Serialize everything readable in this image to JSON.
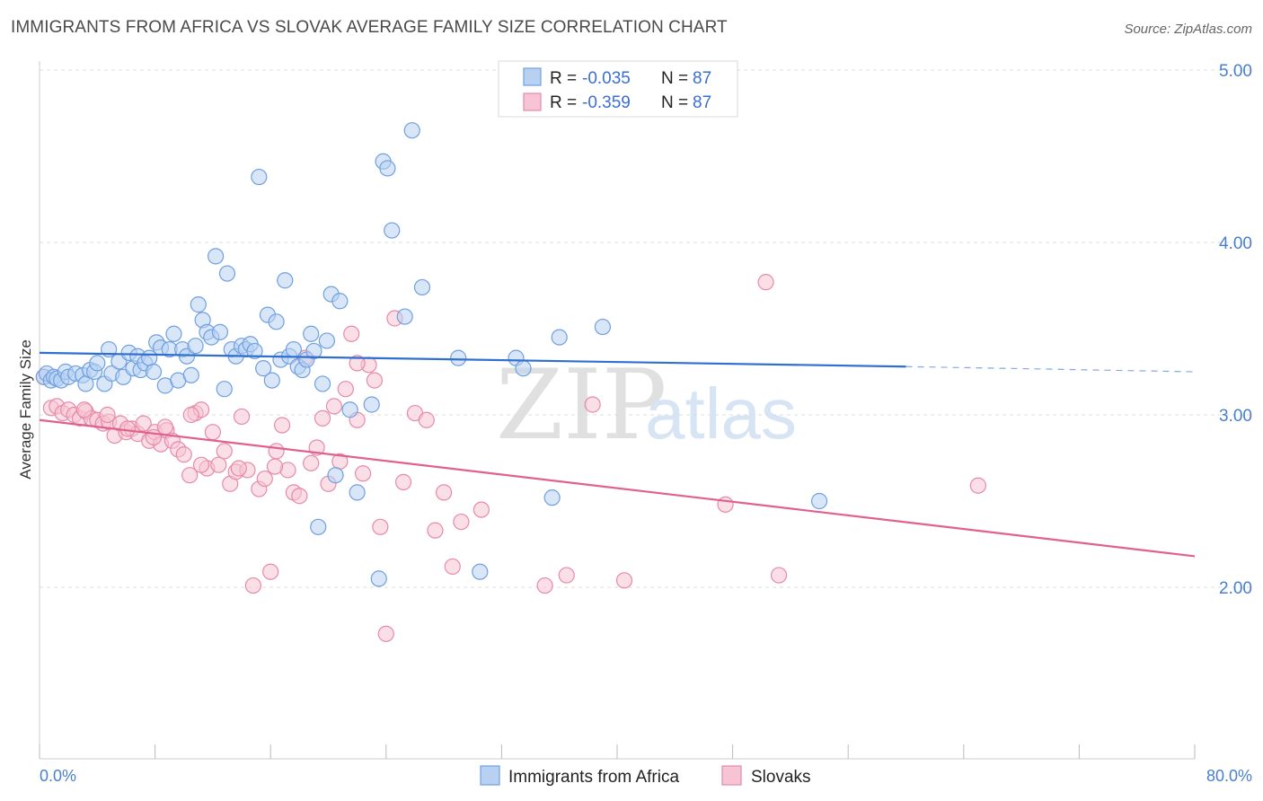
{
  "title": "IMMIGRANTS FROM AFRICA VS SLOVAK AVERAGE FAMILY SIZE CORRELATION CHART",
  "source": "Source: ZipAtlas.com",
  "watermark": {
    "zip": "ZIP",
    "atlas": "atlas"
  },
  "colors": {
    "blue": "#6fa0e0",
    "blue_fill": "#b8d1f2",
    "blue_line": "#2f6fd0",
    "pink": "#e78aa9",
    "pink_fill": "#f6c4d4",
    "pink_line": "#e0608f",
    "grid": "#dddddd",
    "tick_text": "#4a7fd0"
  },
  "legend": {
    "rows": [
      {
        "r_label": "R = ",
        "r_value": "-0.035",
        "n_label": "N = ",
        "n_value": "87"
      },
      {
        "r_label": "R = ",
        "r_value": "-0.359",
        "n_label": "N = ",
        "n_value": "87"
      }
    ]
  },
  "chart_data": {
    "type": "scatter",
    "title": "IMMIGRANTS FROM AFRICA VS SLOVAK AVERAGE FAMILY SIZE CORRELATION CHART",
    "xlabel": "",
    "ylabel": "Average Family Size",
    "xlim": [
      0,
      80
    ],
    "ylim": [
      1.0,
      5.1
    ],
    "x_tick_labels": [
      "0.0%",
      "80.0%"
    ],
    "y_ticks": [
      2.0,
      3.0,
      4.0,
      5.0
    ],
    "y_tick_labels": [
      "2.00",
      "3.00",
      "4.00",
      "5.00"
    ],
    "grid": true,
    "legend_position": "top-center",
    "series": [
      {
        "name": "Immigrants from Africa",
        "color": "#6fa0e0",
        "trend": {
          "x0": 0,
          "y0": 3.36,
          "x1": 60,
          "y1": 3.28,
          "dash_to_x": 80,
          "dash_to_y": 3.25
        },
        "points": [
          [
            0.3,
            3.22
          ],
          [
            0.5,
            3.24
          ],
          [
            0.8,
            3.2
          ],
          [
            1.0,
            3.22
          ],
          [
            1.2,
            3.21
          ],
          [
            1.5,
            3.2
          ],
          [
            1.8,
            3.25
          ],
          [
            2.0,
            3.22
          ],
          [
            2.5,
            3.24
          ],
          [
            3.0,
            3.23
          ],
          [
            3.2,
            3.18
          ],
          [
            3.5,
            3.26
          ],
          [
            3.8,
            3.25
          ],
          [
            4.0,
            3.3
          ],
          [
            4.5,
            3.18
          ],
          [
            4.8,
            3.38
          ],
          [
            5.0,
            3.24
          ],
          [
            5.5,
            3.31
          ],
          [
            5.8,
            3.22
          ],
          [
            6.2,
            3.36
          ],
          [
            6.5,
            3.27
          ],
          [
            6.8,
            3.34
          ],
          [
            7.0,
            3.26
          ],
          [
            7.3,
            3.3
          ],
          [
            7.6,
            3.33
          ],
          [
            7.9,
            3.25
          ],
          [
            8.1,
            3.42
          ],
          [
            8.4,
            3.39
          ],
          [
            8.7,
            3.17
          ],
          [
            9.0,
            3.38
          ],
          [
            9.3,
            3.47
          ],
          [
            9.6,
            3.2
          ],
          [
            9.9,
            3.38
          ],
          [
            10.2,
            3.34
          ],
          [
            10.5,
            3.23
          ],
          [
            10.8,
            3.4
          ],
          [
            11.0,
            3.64
          ],
          [
            11.3,
            3.55
          ],
          [
            11.6,
            3.48
          ],
          [
            11.9,
            3.45
          ],
          [
            12.2,
            3.92
          ],
          [
            12.5,
            3.48
          ],
          [
            12.8,
            3.15
          ],
          [
            13.0,
            3.82
          ],
          [
            13.3,
            3.38
          ],
          [
            13.6,
            3.34
          ],
          [
            14.0,
            3.4
          ],
          [
            14.3,
            3.38
          ],
          [
            14.6,
            3.41
          ],
          [
            14.9,
            3.37
          ],
          [
            15.2,
            4.38
          ],
          [
            15.5,
            3.27
          ],
          [
            15.8,
            3.58
          ],
          [
            16.1,
            3.2
          ],
          [
            16.4,
            3.54
          ],
          [
            16.7,
            3.32
          ],
          [
            17.0,
            3.78
          ],
          [
            17.3,
            3.34
          ],
          [
            17.6,
            3.38
          ],
          [
            17.9,
            3.28
          ],
          [
            18.2,
            3.26
          ],
          [
            18.5,
            3.32
          ],
          [
            18.8,
            3.47
          ],
          [
            19.0,
            3.37
          ],
          [
            19.3,
            2.35
          ],
          [
            19.6,
            3.18
          ],
          [
            19.9,
            3.43
          ],
          [
            20.2,
            3.7
          ],
          [
            20.5,
            2.65
          ],
          [
            20.8,
            3.66
          ],
          [
            21.5,
            3.03
          ],
          [
            22.0,
            2.55
          ],
          [
            23.0,
            3.06
          ],
          [
            23.5,
            2.05
          ],
          [
            23.8,
            4.47
          ],
          [
            24.1,
            4.43
          ],
          [
            24.4,
            4.07
          ],
          [
            25.3,
            3.57
          ],
          [
            25.8,
            4.65
          ],
          [
            26.5,
            3.74
          ],
          [
            29.0,
            3.33
          ],
          [
            30.5,
            2.09
          ],
          [
            33.0,
            3.33
          ],
          [
            33.5,
            3.27
          ],
          [
            35.5,
            2.52
          ],
          [
            36.0,
            3.45
          ],
          [
            39.0,
            3.51
          ],
          [
            54.0,
            2.5
          ]
        ]
      },
      {
        "name": "Slovaks",
        "color": "#e78aa9",
        "trend": {
          "x0": 0,
          "y0": 2.97,
          "x1": 80,
          "y1": 2.18
        },
        "points": [
          [
            0.3,
            3.22
          ],
          [
            0.8,
            3.04
          ],
          [
            1.2,
            3.05
          ],
          [
            1.6,
            3.01
          ],
          [
            2.0,
            3.03
          ],
          [
            2.4,
            3.0
          ],
          [
            2.8,
            2.98
          ],
          [
            3.2,
            3.02
          ],
          [
            3.6,
            2.98
          ],
          [
            4.0,
            2.97
          ],
          [
            4.4,
            2.95
          ],
          [
            4.8,
            2.96
          ],
          [
            5.2,
            2.88
          ],
          [
            5.6,
            2.95
          ],
          [
            6.0,
            2.9
          ],
          [
            6.4,
            2.92
          ],
          [
            6.8,
            2.89
          ],
          [
            7.2,
            2.95
          ],
          [
            7.6,
            2.85
          ],
          [
            8.0,
            2.9
          ],
          [
            8.4,
            2.83
          ],
          [
            8.8,
            2.91
          ],
          [
            9.2,
            2.85
          ],
          [
            9.6,
            2.8
          ],
          [
            10.0,
            2.77
          ],
          [
            10.4,
            2.65
          ],
          [
            10.8,
            3.01
          ],
          [
            11.2,
            3.03
          ],
          [
            11.6,
            2.69
          ],
          [
            12.0,
            2.9
          ],
          [
            12.4,
            2.71
          ],
          [
            12.8,
            2.79
          ],
          [
            13.2,
            2.6
          ],
          [
            13.6,
            2.67
          ],
          [
            14.0,
            2.99
          ],
          [
            14.4,
            2.68
          ],
          [
            14.8,
            2.01
          ],
          [
            15.2,
            2.57
          ],
          [
            15.6,
            2.63
          ],
          [
            16.0,
            2.09
          ],
          [
            16.4,
            2.79
          ],
          [
            16.8,
            2.94
          ],
          [
            17.2,
            2.68
          ],
          [
            17.6,
            2.55
          ],
          [
            18.0,
            2.53
          ],
          [
            18.4,
            3.33
          ],
          [
            18.8,
            2.72
          ],
          [
            19.2,
            2.81
          ],
          [
            19.6,
            2.98
          ],
          [
            20.0,
            2.6
          ],
          [
            20.4,
            3.05
          ],
          [
            20.8,
            2.73
          ],
          [
            21.2,
            3.15
          ],
          [
            21.6,
            3.47
          ],
          [
            22.0,
            2.97
          ],
          [
            22.4,
            2.66
          ],
          [
            22.8,
            3.29
          ],
          [
            23.2,
            3.2
          ],
          [
            23.6,
            2.35
          ],
          [
            24.0,
            1.73
          ],
          [
            24.6,
            3.56
          ],
          [
            25.2,
            2.61
          ],
          [
            26.0,
            3.01
          ],
          [
            26.8,
            2.97
          ],
          [
            27.4,
            2.33
          ],
          [
            28.0,
            2.55
          ],
          [
            28.6,
            2.12
          ],
          [
            29.2,
            2.38
          ],
          [
            30.6,
            2.45
          ],
          [
            35.0,
            2.01
          ],
          [
            36.5,
            2.07
          ],
          [
            38.3,
            3.06
          ],
          [
            40.5,
            2.04
          ],
          [
            47.5,
            2.48
          ],
          [
            50.3,
            3.77
          ],
          [
            51.2,
            2.07
          ],
          [
            65.0,
            2.59
          ],
          [
            10.5,
            3.0
          ],
          [
            13.8,
            2.69
          ],
          [
            16.3,
            2.7
          ],
          [
            7.9,
            2.87
          ],
          [
            8.7,
            2.93
          ],
          [
            11.2,
            2.71
          ],
          [
            4.7,
            3.0
          ],
          [
            3.1,
            3.03
          ],
          [
            22.0,
            3.3
          ],
          [
            6.1,
            2.92
          ]
        ]
      }
    ]
  },
  "bottom_legend": [
    {
      "label": "Immigrants from Africa"
    },
    {
      "label": "Slovaks"
    }
  ]
}
